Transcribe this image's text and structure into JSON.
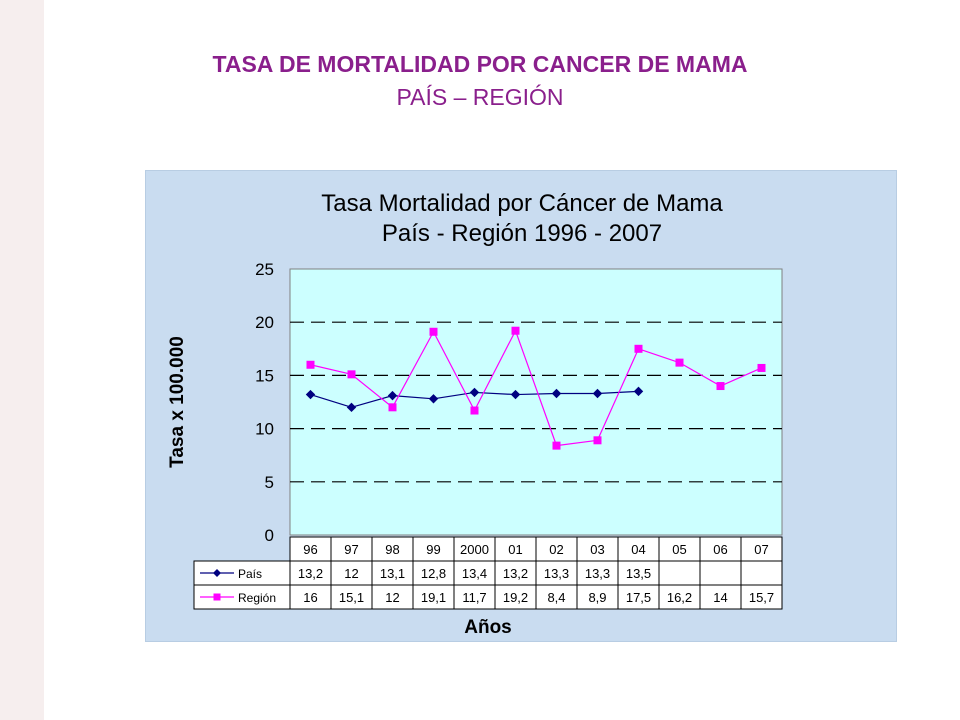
{
  "slide": {
    "title": "TASA DE MORTALIDAD POR CANCER DE MAMA",
    "subtitle": "PAÍS – REGIÓN"
  },
  "colors": {
    "title": "#8a1f8c",
    "plot_bg": "#ccffff",
    "frame_bg": "#c9dcf0",
    "pais": "#000080",
    "region": "#ff00ff"
  },
  "chart_data": {
    "type": "line",
    "title": [
      "Tasa Mortalidad por Cáncer de Mama",
      "País - Región  1996 - 2007"
    ],
    "xlabel": "Años",
    "ylabel": "Tasa x 100.000",
    "ylim": [
      0,
      25
    ],
    "yticks": [
      0,
      5,
      10,
      15,
      20,
      25
    ],
    "grid": "horizontal dashed",
    "legend": "data table below axis",
    "categories": [
      "96",
      "97",
      "98",
      "99",
      "2000",
      "01",
      "02",
      "03",
      "04",
      "05",
      "06",
      "07"
    ],
    "series": [
      {
        "name": "País",
        "values": [
          13.2,
          12,
          13.1,
          12.8,
          13.4,
          13.2,
          13.3,
          13.3,
          13.5,
          null,
          null,
          null
        ],
        "labels": [
          "13,2",
          "12",
          "13,1",
          "12,8",
          "13,4",
          "13,2",
          "13,3",
          "13,3",
          "13,5",
          "",
          "",
          ""
        ],
        "marker": "diamond",
        "color": "#000080"
      },
      {
        "name": "Región",
        "values": [
          16,
          15.1,
          12,
          19.1,
          11.7,
          19.2,
          8.4,
          8.9,
          17.5,
          16.2,
          14,
          15.7
        ],
        "labels": [
          "16",
          "15,1",
          "12",
          "19,1",
          "11,7",
          "19,2",
          "8,4",
          "8,9",
          "17,5",
          "16,2",
          "14",
          "15,7"
        ],
        "marker": "square",
        "color": "#ff00ff"
      }
    ]
  }
}
